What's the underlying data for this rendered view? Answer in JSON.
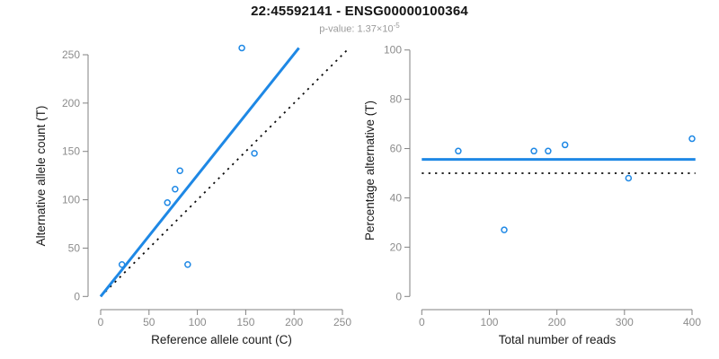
{
  "header": {
    "title": "22:45592141 - ENSG00000100364",
    "subtitle_prefix": "p-value: 1.37×10",
    "subtitle_exponent": "-5"
  },
  "colors": {
    "accent_blue": "#1E88E5",
    "reference_black": "#0a0a0a",
    "axis_gray": "#828282",
    "tick_label_gray": "#8c8c8c",
    "axis_title_color": "#1a1a1a"
  },
  "chart_data": [
    {
      "type": "scatter",
      "name": "allele-counts-panel",
      "xlabel": "Reference allele count (C)",
      "ylabel": "Alternative allele count (T)",
      "xlim": [
        0,
        250
      ],
      "ylim": [
        0,
        250
      ],
      "xticks": [
        0,
        50,
        100,
        150,
        200,
        250
      ],
      "yticks": [
        0,
        50,
        100,
        150,
        200,
        250
      ],
      "grid": false,
      "legend": "none",
      "points": [
        [
          22,
          33
        ],
        [
          69,
          97
        ],
        [
          77,
          111
        ],
        [
          82,
          130
        ],
        [
          90,
          33
        ],
        [
          146,
          257
        ],
        [
          159,
          148
        ]
      ],
      "lines": [
        {
          "name": "identity-line",
          "style": "dotted",
          "color": "#0a0a0a",
          "width": 1.8,
          "x1": 0,
          "y1": 0,
          "x2": 256,
          "y2": 256
        },
        {
          "name": "fitted-allelic-ratio-line",
          "style": "solid",
          "color": "#1E88E5",
          "width": 3,
          "x1": 0,
          "y1": 0,
          "x2": 205,
          "y2": 257
        }
      ]
    },
    {
      "type": "scatter",
      "name": "percentage-panel",
      "xlabel": "Total number of reads",
      "ylabel": "Percentage alternative (T)",
      "xlim": [
        0,
        400
      ],
      "ylim": [
        0,
        100
      ],
      "xticks": [
        0,
        100,
        200,
        300,
        400
      ],
      "yticks": [
        0,
        20,
        40,
        60,
        80,
        100
      ],
      "grid": false,
      "legend": "none",
      "points": [
        [
          54,
          59
        ],
        [
          122,
          27
        ],
        [
          166,
          59
        ],
        [
          187,
          59
        ],
        [
          212,
          61.5
        ],
        [
          306,
          48
        ],
        [
          400,
          64
        ]
      ],
      "lines": [
        {
          "name": "expected-50-percent-line",
          "style": "dotted",
          "color": "#0a0a0a",
          "width": 1.8,
          "x1": 0,
          "y1": 50,
          "x2": 405,
          "y2": 50
        },
        {
          "name": "mean-alternative-percentage-line",
          "style": "solid",
          "color": "#1E88E5",
          "width": 3,
          "x1": 0,
          "y1": 55.6,
          "x2": 405,
          "y2": 55.6
        }
      ]
    }
  ]
}
